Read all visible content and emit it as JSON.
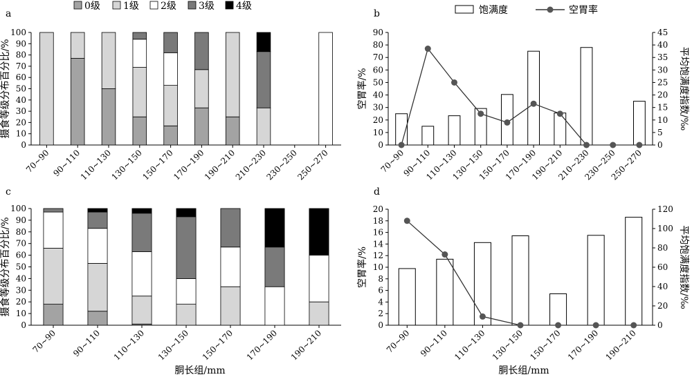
{
  "figure": {
    "xlabel_bottom": "胴长组/mm",
    "legend_grades": [
      {
        "label": "0级",
        "color": "#a3a3a3"
      },
      {
        "label": "1级",
        "color": "#d6d6d6"
      },
      {
        "label": "2级",
        "color": "#ffffff"
      },
      {
        "label": "3级",
        "color": "#7a7a7a"
      },
      {
        "label": "4级",
        "color": "#000000"
      }
    ],
    "legend_right": {
      "bar_label": "饱满度",
      "line_label": "空胃率"
    }
  },
  "chart_data": [
    {
      "id": "a",
      "type": "bar",
      "stacked": true,
      "panel_label": "a",
      "ylabel": "摄食等级分布百分比/%",
      "xlabel": "",
      "ylim": [
        0,
        100
      ],
      "yticks": [
        0,
        10,
        20,
        30,
        40,
        50,
        60,
        70,
        80,
        90,
        100
      ],
      "categories": [
        "70~90",
        "90~110",
        "110~130",
        "130~150",
        "150~170",
        "170~190",
        "190~210",
        "210~230",
        "230~250",
        "250~270"
      ],
      "series": [
        {
          "name": "0级",
          "color": "#a3a3a3",
          "values": [
            0,
            77,
            50,
            25,
            17,
            33,
            25,
            0,
            0,
            0
          ]
        },
        {
          "name": "1级",
          "color": "#d6d6d6",
          "values": [
            100,
            23,
            50,
            44,
            36,
            34,
            75,
            33,
            0,
            0
          ]
        },
        {
          "name": "2级",
          "color": "#ffffff",
          "values": [
            0,
            0,
            0,
            25,
            29,
            0,
            0,
            0,
            0,
            100
          ]
        },
        {
          "name": "3级",
          "color": "#7a7a7a",
          "values": [
            0,
            0,
            0,
            6,
            18,
            33,
            0,
            50,
            0,
            0
          ]
        },
        {
          "name": "4级",
          "color": "#000000",
          "values": [
            0,
            0,
            0,
            0,
            0,
            0,
            0,
            17,
            0,
            0
          ]
        }
      ]
    },
    {
      "id": "b",
      "type": "bar",
      "panel_label": "b",
      "ylabel": "空胃率/%",
      "ylabel_right": "平均饱满度指数/‰",
      "ylim": [
        0,
        90
      ],
      "yticks": [
        0,
        10,
        20,
        30,
        40,
        50,
        60,
        70,
        80,
        90
      ],
      "ylim_right": [
        0,
        45
      ],
      "yticks_right": [
        0,
        5,
        10,
        15,
        20,
        25,
        30,
        35,
        40,
        45
      ],
      "categories": [
        "70~90",
        "90~110",
        "110~130",
        "130~150",
        "150~170",
        "170~190",
        "190~210",
        "210~230",
        "230~250",
        "250~270"
      ],
      "series": [
        {
          "name": "饱满度",
          "kind": "bar",
          "axis": "right",
          "values": [
            12.5,
            7.5,
            11.7,
            14.6,
            20.2,
            37.5,
            12.8,
            39,
            0,
            17.5
          ]
        },
        {
          "name": "空胃率",
          "kind": "line",
          "axis": "left",
          "values": [
            0,
            77,
            50,
            25,
            18,
            33,
            25,
            0,
            0,
            0
          ]
        }
      ]
    },
    {
      "id": "c",
      "type": "bar",
      "stacked": true,
      "panel_label": "c",
      "ylabel": "摄食等级分布百分比/%",
      "ylim": [
        0,
        100
      ],
      "yticks": [
        0,
        10,
        20,
        30,
        40,
        50,
        60,
        70,
        80,
        90,
        100
      ],
      "categories": [
        "70~90",
        "90~110",
        "110~130",
        "130~150",
        "150~170",
        "170~190",
        "190~210"
      ],
      "series": [
        {
          "name": "0级",
          "color": "#a3a3a3",
          "values": [
            18,
            12,
            1,
            0,
            0,
            0,
            0
          ]
        },
        {
          "name": "1级",
          "color": "#d6d6d6",
          "values": [
            48,
            41,
            24,
            18,
            33,
            0,
            20
          ]
        },
        {
          "name": "2级",
          "color": "#ffffff",
          "values": [
            31,
            30,
            38,
            22,
            34,
            33,
            40
          ]
        },
        {
          "name": "3级",
          "color": "#7a7a7a",
          "values": [
            3,
            14,
            33,
            53,
            33,
            34,
            0
          ]
        },
        {
          "name": "4级",
          "color": "#000000",
          "values": [
            0,
            3,
            4,
            7,
            0,
            33,
            40
          ]
        }
      ]
    },
    {
      "id": "d",
      "type": "bar",
      "panel_label": "d",
      "ylabel": "空胃率/%",
      "ylabel_right": "平均饱满度指数/‰",
      "ylim": [
        0,
        20
      ],
      "yticks": [
        0,
        2,
        4,
        6,
        8,
        10,
        12,
        14,
        16,
        18,
        20
      ],
      "ylim_right": [
        0,
        120
      ],
      "yticks_right": [
        0,
        20,
        40,
        60,
        80,
        100,
        120
      ],
      "categories": [
        "70~90",
        "90~110",
        "110~130",
        "130~150",
        "150~170",
        "170~190",
        "190~210"
      ],
      "series": [
        {
          "name": "饱满度",
          "kind": "bar",
          "axis": "right",
          "values": [
            58.6,
            68.3,
            85.5,
            92.5,
            32.5,
            93,
            111.7
          ]
        },
        {
          "name": "空胃率",
          "kind": "line",
          "axis": "left",
          "values": [
            18,
            12.2,
            1.5,
            0,
            0,
            0,
            0
          ]
        }
      ]
    }
  ]
}
